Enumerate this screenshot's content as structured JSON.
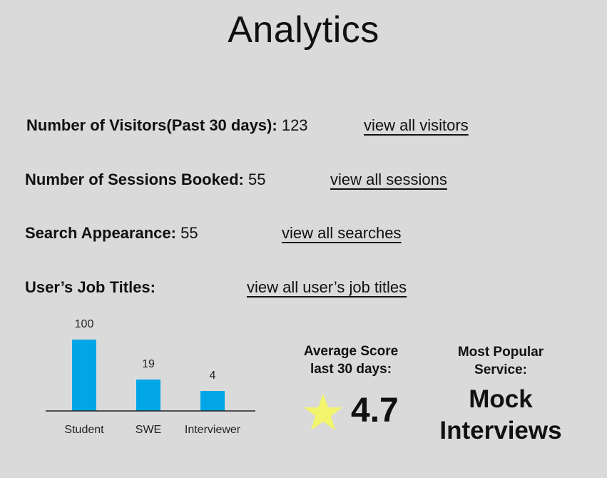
{
  "page": {
    "title": "Analytics"
  },
  "stats": {
    "visitors": {
      "label": "Number of Visitors(Past 30 days):",
      "value": "123",
      "link": "view all visitors"
    },
    "sessions": {
      "label": "Number of Sessions Booked:",
      "value": "55",
      "link": "view all sessions"
    },
    "searches": {
      "label": "Search Appearance:",
      "value": "55",
      "link": "view all searches"
    },
    "job_titles": {
      "label": "User’s Job Titles:",
      "link": "view all user’s job titles"
    }
  },
  "average_score": {
    "label_line1": "Average Score",
    "label_line2": "last 30 days:",
    "value": "4.7",
    "icon": "star-icon",
    "icon_color": "#f2f56b"
  },
  "popular_service": {
    "label_line1": "Most Popular",
    "label_line2": "Service:",
    "value_line1": "Mock",
    "value_line2": "Interviews"
  },
  "chart_data": {
    "type": "bar",
    "categories": [
      "Student",
      "SWE",
      "Interviewer"
    ],
    "values": [
      100,
      19,
      4
    ],
    "title": "",
    "xlabel": "",
    "ylabel": "",
    "bar_color": "#00a6e6",
    "grid": false
  }
}
